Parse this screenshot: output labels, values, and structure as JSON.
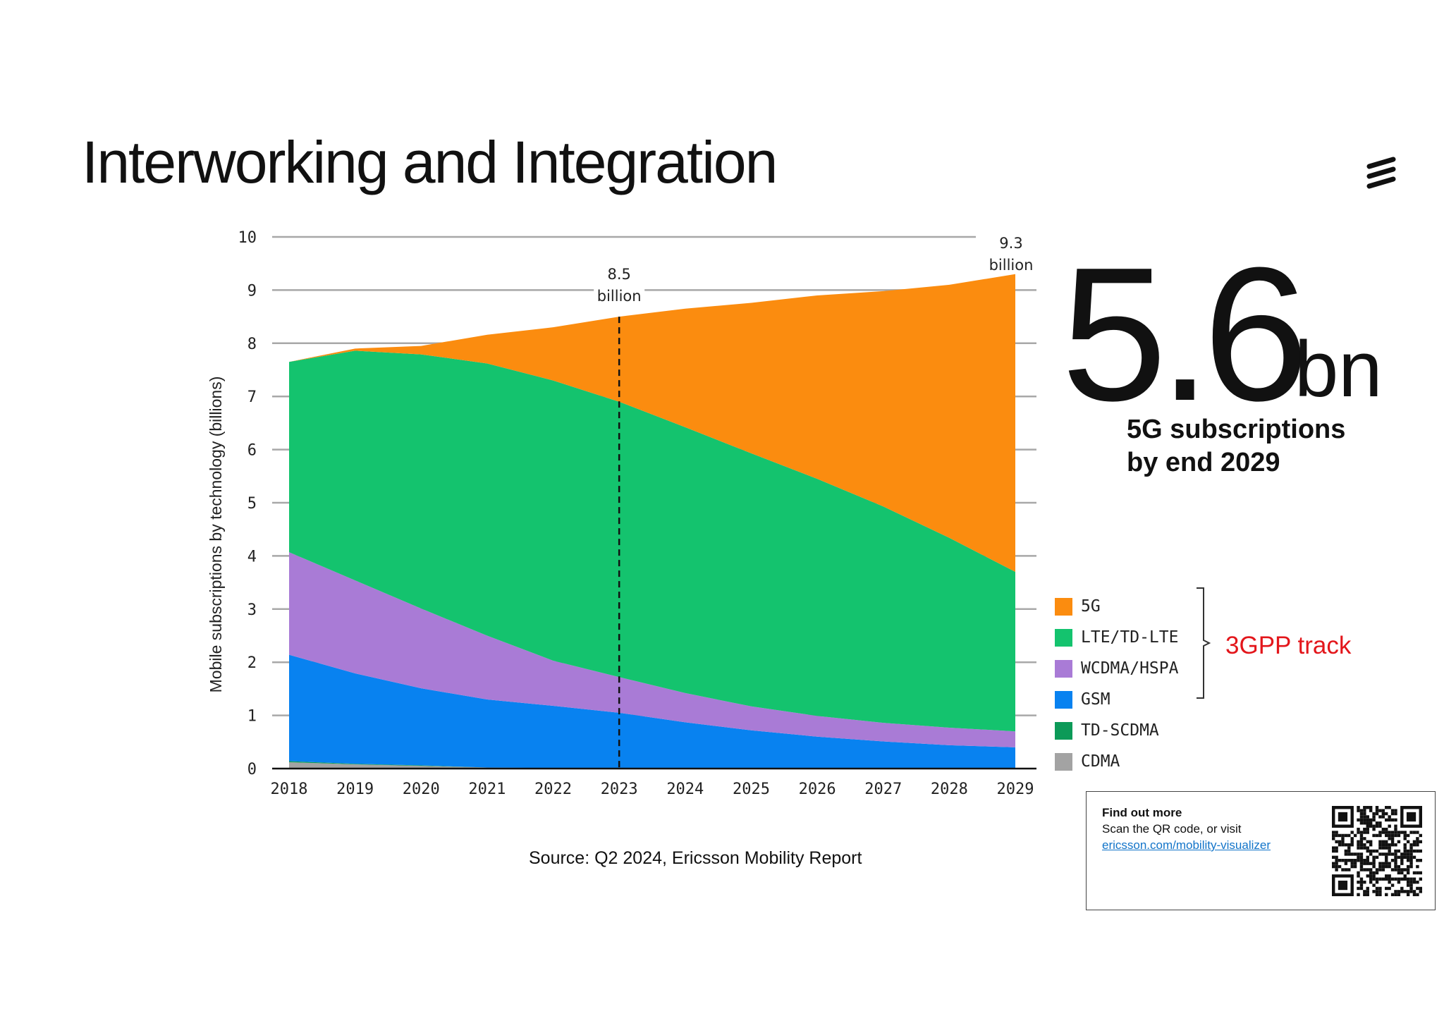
{
  "slide": {
    "title": "Interworking and Integration"
  },
  "headline": {
    "number": "5.6",
    "unit": "bn",
    "caption_line1": "5G subscriptions",
    "caption_line2": "by end 2029"
  },
  "track_label": "3GPP track",
  "source": "Source: Q2 2024, Ericsson Mobility Report",
  "info_box": {
    "title": "Find out more",
    "text": "Scan the QR code, or visit",
    "link": "ericsson.com/mobility-visualizer"
  },
  "colors": {
    "5G": "#fb8c0f",
    "LTE/TD-LTE": "#14c36e",
    "WCDMA/HSPA": "#a97bd6",
    "GSM": "#0882f0",
    "TD-SCDMA": "#0c9a58",
    "CDMA": "#a3a3a3",
    "track": "#e3161b"
  },
  "chart_data": {
    "type": "area",
    "stacked": true,
    "ylabel": "Mobile subscriptions by technology (billions)",
    "xlabel": "",
    "ylim": [
      0,
      10
    ],
    "yticks": [
      "0",
      "1",
      "2",
      "3",
      "4",
      "5",
      "6",
      "7",
      "8",
      "9",
      "10"
    ],
    "x": [
      "2018",
      "2019",
      "2020",
      "2021",
      "2022",
      "2023",
      "2024",
      "2025",
      "2026",
      "2027",
      "2028",
      "2029"
    ],
    "grid": true,
    "series": [
      {
        "name": "CDMA",
        "values": [
          0.12,
          0.08,
          0.05,
          0.02,
          0.01,
          0,
          0,
          0,
          0,
          0,
          0,
          0
        ]
      },
      {
        "name": "TD-SCDMA",
        "values": [
          0.02,
          0.01,
          0.01,
          0,
          0,
          0,
          0,
          0,
          0,
          0,
          0,
          0
        ]
      },
      {
        "name": "GSM",
        "values": [
          2.0,
          1.7,
          1.45,
          1.28,
          1.17,
          1.05,
          0.87,
          0.72,
          0.6,
          0.51,
          0.44,
          0.4
        ]
      },
      {
        "name": "WCDMA/HSPA",
        "values": [
          1.93,
          1.75,
          1.5,
          1.2,
          0.85,
          0.67,
          0.55,
          0.45,
          0.39,
          0.35,
          0.33,
          0.3
        ]
      },
      {
        "name": "LTE/TD-LTE",
        "values": [
          3.58,
          4.32,
          4.78,
          5.12,
          5.27,
          5.18,
          5.0,
          4.76,
          4.46,
          4.07,
          3.57,
          3.0
        ]
      },
      {
        "name": "5G",
        "values": [
          0,
          0.04,
          0.16,
          0.54,
          1.0,
          1.6,
          2.23,
          2.83,
          3.45,
          4.05,
          4.76,
          5.6
        ]
      }
    ],
    "annotations": [
      {
        "x": "2023",
        "value_text": "8.5",
        "unit_text": "billion",
        "style": "dashed-line"
      },
      {
        "x": "2029",
        "value_text": "9.3",
        "unit_text": "billion"
      }
    ],
    "legend": {
      "placement": "right",
      "entries": [
        "5G",
        "LTE/TD-LTE",
        "WCDMA/HSPA",
        "GSM",
        "TD-SCDMA",
        "CDMA"
      ]
    }
  }
}
